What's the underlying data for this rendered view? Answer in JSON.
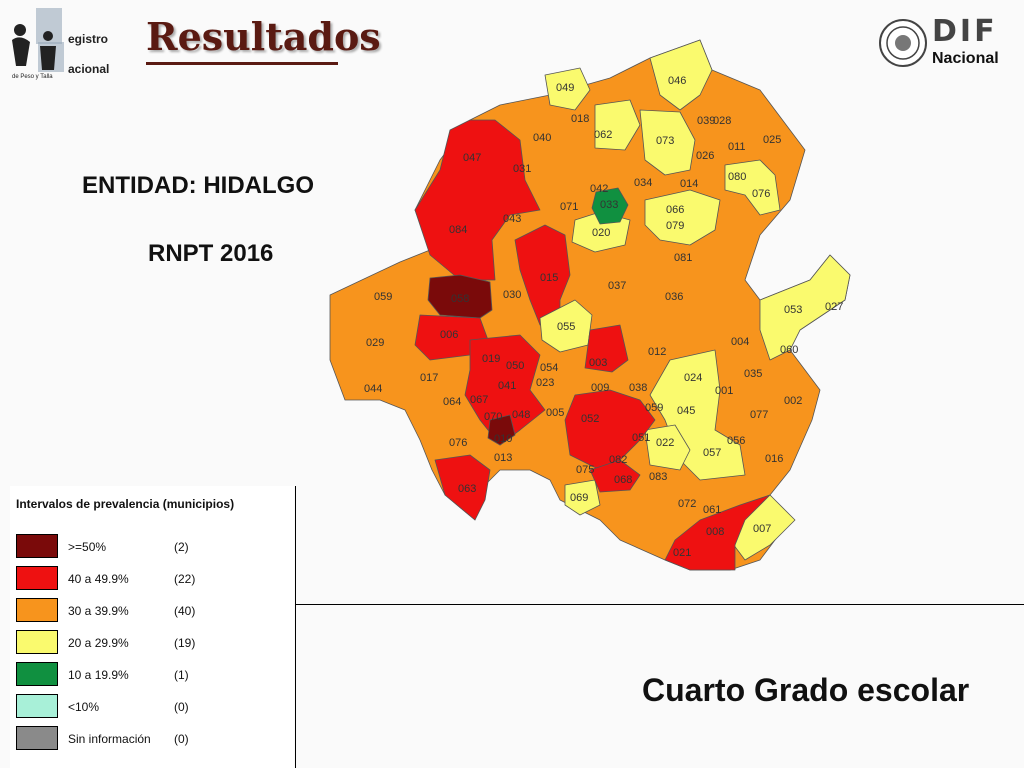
{
  "header": {
    "logo_left": {
      "line1": "egistro",
      "line2": "acional",
      "line3": "de Peso y Talla"
    },
    "title": "Resultados",
    "logo_right": {
      "line1": "DIF",
      "line2": "Nacional"
    }
  },
  "entity_label": "ENTIDAD: HIDALGO",
  "program_label": "RNPT 2016",
  "legend": {
    "title": "Intervalos de prevalencia (municipios)",
    "items": [
      {
        "label": ">=50%",
        "count": "(2)",
        "color": "#7a0a0a"
      },
      {
        "label": "40 a 49.9%",
        "count": "(22)",
        "color": "#ee1111"
      },
      {
        "label": "30 a 39.9%",
        "count": "(40)",
        "color": "#f7941d"
      },
      {
        "label": "20 a 29.9%",
        "count": "(19)",
        "color": "#fafa6e"
      },
      {
        "label": "10 a 19.9%",
        "count": "(1)",
        "color": "#109040"
      },
      {
        "label": "<10%",
        "count": "(0)",
        "color": "#a8f0d8"
      },
      {
        "label": "Sin información",
        "count": "(0)",
        "color": "#8a8a8a"
      }
    ]
  },
  "subtitle": "Cuarto Grado escolar",
  "map_labels": [
    "049",
    "046",
    "018",
    "040",
    "062",
    "073",
    "039",
    "028",
    "025",
    "011",
    "026",
    "047",
    "031",
    "080",
    "034",
    "014",
    "042",
    "033",
    "076",
    "071",
    "043",
    "066",
    "079",
    "020",
    "084",
    "081",
    "015",
    "037",
    "059",
    "058",
    "030",
    "036",
    "053",
    "027",
    "055",
    "006",
    "060",
    "004",
    "029",
    "003",
    "012",
    "019",
    "050",
    "054",
    "035",
    "023",
    "024",
    "009",
    "038",
    "001",
    "017",
    "044",
    "041",
    "064",
    "067",
    "002",
    "005",
    "052",
    "059",
    "045",
    "077",
    "070",
    "048",
    "010",
    "051",
    "022",
    "056",
    "076",
    "057",
    "016",
    "013",
    "075",
    "082",
    "068",
    "083",
    "063",
    "069",
    "072",
    "061",
    "007",
    "008",
    "021"
  ]
}
